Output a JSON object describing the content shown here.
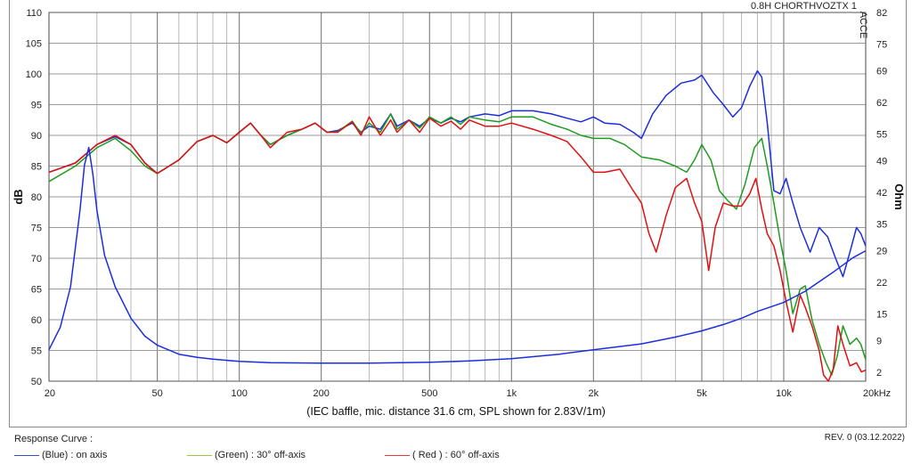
{
  "chart_data": {
    "type": "line",
    "title": "",
    "corner_label": "0.8H CHORTHVOZTX 1",
    "side_label": "ACCE",
    "caption": "(IEC baffle, mic. distance 31.6 cm, SPL shown for 2.83V/1m)",
    "x_scale": "log",
    "xlim": [
      20,
      20000
    ],
    "x_tick_values": [
      20,
      50,
      100,
      200,
      500,
      1000,
      2000,
      5000,
      10000,
      20000
    ],
    "x_tick_labels": [
      "20",
      "50",
      "100",
      "200",
      "500",
      "1k",
      "2k",
      "5k",
      "10k",
      "20kHz"
    ],
    "ylabel_left": "dB",
    "ylim_left": [
      50,
      110
    ],
    "y_ticks_left": [
      50,
      55,
      60,
      65,
      70,
      75,
      80,
      85,
      90,
      95,
      100,
      105,
      110
    ],
    "ylabel_right": "Ohm",
    "ylim_right": [
      0,
      82
    ],
    "y_ticks_right": [
      2,
      9,
      15,
      22,
      29,
      35,
      42,
      49,
      55,
      62,
      69,
      75,
      82
    ],
    "grid": true,
    "series": [
      {
        "name": "(Blue) : on axis",
        "color": "#1a2ee0",
        "axis": "left",
        "points": [
          [
            20,
            84
          ],
          [
            25,
            85.5
          ],
          [
            30,
            88.5
          ],
          [
            35,
            89.8
          ],
          [
            40,
            88.5
          ],
          [
            45,
            85.5
          ],
          [
            50,
            83.8
          ],
          [
            60,
            86
          ],
          [
            70,
            89
          ],
          [
            80,
            90
          ],
          [
            90,
            88.8
          ],
          [
            100,
            90.5
          ],
          [
            110,
            92
          ],
          [
            120,
            90
          ],
          [
            130,
            88.5
          ],
          [
            150,
            90
          ],
          [
            170,
            91
          ],
          [
            190,
            92
          ],
          [
            210,
            90.5
          ],
          [
            230,
            90.8
          ],
          [
            260,
            92
          ],
          [
            280,
            90.5
          ],
          [
            300,
            91.5
          ],
          [
            330,
            91
          ],
          [
            360,
            93.5
          ],
          [
            380,
            91.5
          ],
          [
            420,
            92.5
          ],
          [
            460,
            91.5
          ],
          [
            500,
            92.8
          ],
          [
            550,
            92
          ],
          [
            600,
            92.8
          ],
          [
            650,
            92.2
          ],
          [
            700,
            93
          ],
          [
            800,
            93.5
          ],
          [
            900,
            93.2
          ],
          [
            1000,
            94
          ],
          [
            1200,
            94
          ],
          [
            1400,
            93.5
          ],
          [
            1600,
            92.8
          ],
          [
            1800,
            92.2
          ],
          [
            2000,
            93
          ],
          [
            2200,
            92
          ],
          [
            2500,
            91.8
          ],
          [
            2800,
            90.5
          ],
          [
            3000,
            89.5
          ],
          [
            3300,
            93.5
          ],
          [
            3700,
            96.5
          ],
          [
            4200,
            98.5
          ],
          [
            4700,
            99
          ],
          [
            5000,
            99.8
          ],
          [
            5500,
            97
          ],
          [
            6000,
            95
          ],
          [
            6500,
            93
          ],
          [
            7000,
            94.5
          ],
          [
            7500,
            98
          ],
          [
            8000,
            100.5
          ],
          [
            8300,
            99.5
          ],
          [
            8700,
            92
          ],
          [
            9200,
            81
          ],
          [
            9700,
            80.5
          ],
          [
            10200,
            83
          ],
          [
            10800,
            79
          ],
          [
            11500,
            75
          ],
          [
            12500,
            71
          ],
          [
            13500,
            75
          ],
          [
            14500,
            73.5
          ],
          [
            15500,
            70
          ],
          [
            16500,
            67
          ],
          [
            17500,
            71
          ],
          [
            18500,
            75
          ],
          [
            19200,
            74
          ],
          [
            20000,
            72
          ]
        ]
      },
      {
        "name": "(Green) : 30° off-axis",
        "color": "#1e9c1e",
        "axis": "left",
        "points": [
          [
            20,
            82.5
          ],
          [
            25,
            85
          ],
          [
            30,
            88
          ],
          [
            35,
            89.5
          ],
          [
            40,
            87.5
          ],
          [
            45,
            85
          ],
          [
            50,
            83.8
          ],
          [
            60,
            86
          ],
          [
            70,
            89
          ],
          [
            80,
            90
          ],
          [
            90,
            88.8
          ],
          [
            100,
            90.5
          ],
          [
            110,
            92
          ],
          [
            120,
            90
          ],
          [
            130,
            88.5
          ],
          [
            150,
            90
          ],
          [
            170,
            91
          ],
          [
            190,
            92
          ],
          [
            210,
            90.5
          ],
          [
            230,
            90.6
          ],
          [
            260,
            92.3
          ],
          [
            280,
            90.3
          ],
          [
            300,
            92
          ],
          [
            330,
            90.5
          ],
          [
            360,
            93.5
          ],
          [
            380,
            91
          ],
          [
            420,
            92.5
          ],
          [
            460,
            91.2
          ],
          [
            500,
            93
          ],
          [
            550,
            92
          ],
          [
            600,
            93
          ],
          [
            650,
            91.8
          ],
          [
            700,
            93
          ],
          [
            800,
            92.5
          ],
          [
            900,
            92.2
          ],
          [
            1000,
            93
          ],
          [
            1200,
            93
          ],
          [
            1400,
            91.8
          ],
          [
            1600,
            91
          ],
          [
            1800,
            90
          ],
          [
            2000,
            89.5
          ],
          [
            2300,
            89.5
          ],
          [
            2600,
            88.5
          ],
          [
            3000,
            86.5
          ],
          [
            3500,
            86
          ],
          [
            4000,
            85
          ],
          [
            4400,
            84
          ],
          [
            4700,
            86
          ],
          [
            5000,
            88.5
          ],
          [
            5400,
            86
          ],
          [
            5800,
            81
          ],
          [
            6200,
            79.5
          ],
          [
            6700,
            78
          ],
          [
            7200,
            82
          ],
          [
            7800,
            88
          ],
          [
            8300,
            89.5
          ],
          [
            8700,
            85
          ],
          [
            9200,
            79
          ],
          [
            9700,
            73
          ],
          [
            10200,
            68
          ],
          [
            10800,
            61
          ],
          [
            11500,
            65
          ],
          [
            12000,
            65.5
          ],
          [
            12700,
            60
          ],
          [
            13500,
            56
          ],
          [
            14300,
            53
          ],
          [
            15000,
            51
          ],
          [
            15700,
            54
          ],
          [
            16500,
            59
          ],
          [
            17500,
            56
          ],
          [
            18500,
            57
          ],
          [
            19200,
            56
          ],
          [
            20000,
            53.5
          ]
        ]
      },
      {
        "name": "( Red ) : 60° off-axis",
        "color": "#e01010",
        "axis": "left",
        "points": [
          [
            20,
            84
          ],
          [
            25,
            85.5
          ],
          [
            30,
            88.5
          ],
          [
            35,
            90
          ],
          [
            40,
            88.5
          ],
          [
            45,
            85.5
          ],
          [
            50,
            83.8
          ],
          [
            60,
            86
          ],
          [
            70,
            89
          ],
          [
            80,
            90
          ],
          [
            90,
            88.8
          ],
          [
            100,
            90.5
          ],
          [
            110,
            92
          ],
          [
            120,
            90
          ],
          [
            130,
            88
          ],
          [
            150,
            90.5
          ],
          [
            170,
            91
          ],
          [
            190,
            92
          ],
          [
            210,
            90.5
          ],
          [
            230,
            90.5
          ],
          [
            260,
            92.2
          ],
          [
            280,
            90
          ],
          [
            300,
            93
          ],
          [
            330,
            90
          ],
          [
            360,
            92.5
          ],
          [
            380,
            90.5
          ],
          [
            420,
            92.5
          ],
          [
            460,
            90.5
          ],
          [
            500,
            92.8
          ],
          [
            550,
            91.5
          ],
          [
            600,
            92.3
          ],
          [
            650,
            91
          ],
          [
            700,
            92.5
          ],
          [
            800,
            91.5
          ],
          [
            900,
            91.5
          ],
          [
            1000,
            92
          ],
          [
            1200,
            91
          ],
          [
            1400,
            90
          ],
          [
            1600,
            89
          ],
          [
            1800,
            86.5
          ],
          [
            2000,
            84
          ],
          [
            2200,
            84
          ],
          [
            2500,
            84.5
          ],
          [
            2800,
            81
          ],
          [
            3000,
            79
          ],
          [
            3200,
            74
          ],
          [
            3400,
            71
          ],
          [
            3700,
            77
          ],
          [
            4000,
            81.5
          ],
          [
            4400,
            83
          ],
          [
            4700,
            79
          ],
          [
            5000,
            76
          ],
          [
            5300,
            68
          ],
          [
            5600,
            75
          ],
          [
            6000,
            79
          ],
          [
            6500,
            78.5
          ],
          [
            7000,
            78.5
          ],
          [
            7500,
            80.5
          ],
          [
            7900,
            83
          ],
          [
            8300,
            78
          ],
          [
            8700,
            74
          ],
          [
            9200,
            72
          ],
          [
            9700,
            68
          ],
          [
            10200,
            63
          ],
          [
            10800,
            58
          ],
          [
            11500,
            64
          ],
          [
            12000,
            62
          ],
          [
            12700,
            59
          ],
          [
            13500,
            55
          ],
          [
            14000,
            51
          ],
          [
            14600,
            49.5
          ],
          [
            15200,
            52
          ],
          [
            15800,
            59
          ],
          [
            16500,
            56
          ],
          [
            17500,
            52.5
          ],
          [
            18500,
            53
          ],
          [
            19300,
            51.5
          ],
          [
            20000,
            51.8
          ]
        ]
      },
      {
        "name": "Impedance",
        "color": "#1a2ee0",
        "axis": "right",
        "points": [
          [
            20,
            7
          ],
          [
            22,
            12
          ],
          [
            24,
            21
          ],
          [
            26,
            38
          ],
          [
            27,
            48
          ],
          [
            28,
            52
          ],
          [
            29,
            46
          ],
          [
            30,
            38
          ],
          [
            32,
            28
          ],
          [
            35,
            21
          ],
          [
            40,
            14
          ],
          [
            45,
            10
          ],
          [
            50,
            8
          ],
          [
            60,
            6
          ],
          [
            70,
            5.3
          ],
          [
            80,
            4.9
          ],
          [
            100,
            4.4
          ],
          [
            130,
            4.1
          ],
          [
            200,
            4
          ],
          [
            300,
            4
          ],
          [
            500,
            4.2
          ],
          [
            700,
            4.5
          ],
          [
            1000,
            5
          ],
          [
            1500,
            6
          ],
          [
            2000,
            7
          ],
          [
            3000,
            8.3
          ],
          [
            4000,
            9.8
          ],
          [
            5000,
            11.2
          ],
          [
            6000,
            12.6
          ],
          [
            7000,
            14
          ],
          [
            8000,
            15.5
          ],
          [
            10000,
            17.5
          ],
          [
            12000,
            20
          ],
          [
            15000,
            24
          ],
          [
            18000,
            27.5
          ],
          [
            20000,
            29
          ]
        ]
      }
    ],
    "legend": {
      "title": "Response Curve :",
      "placement": "bottom-left",
      "entries": [
        {
          "label": "(Blue) : on axis",
          "color": "#3848c8"
        },
        {
          "label": "(Green) : 30° off-axis",
          "color": "#9cc63c"
        },
        {
          "label": "( Red ) : 60° off-axis",
          "color": "#e03a3a"
        }
      ]
    },
    "revision": "REV. 0 (03.12.2022)"
  }
}
